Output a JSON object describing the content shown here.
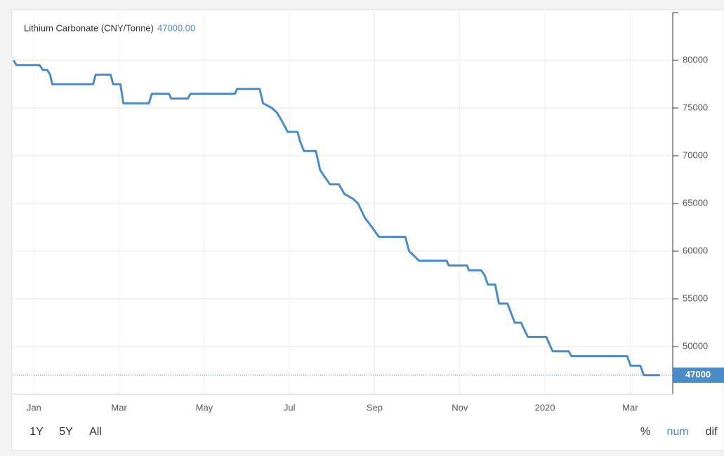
{
  "chart_data": {
    "type": "line",
    "title": "Lithium Carbonate (CNY/Tonne)",
    "header_value": "47000.00",
    "x": [
      -0.48,
      -0.41,
      0.13,
      0.21,
      0.31,
      0.38,
      0.43,
      1.39,
      1.45,
      1.8,
      1.86,
      2.03,
      2.1,
      2.7,
      2.77,
      3.17,
      3.22,
      3.61,
      3.68,
      4.72,
      4.77,
      5.3,
      5.38,
      5.59,
      5.71,
      5.84,
      5.96,
      6.19,
      6.25,
      6.34,
      6.62,
      6.72,
      6.95,
      7.16,
      7.29,
      7.49,
      7.61,
      7.77,
      7.94,
      8.1,
      8.72,
      8.81,
      8.93,
      9.04,
      9.69,
      9.74,
      10.17,
      10.21,
      10.5,
      10.58,
      10.66,
      10.83,
      10.92,
      11.12,
      11.29,
      11.44,
      11.49,
      11.6,
      12.03,
      12.18,
      12.56,
      12.62,
      13.93,
      14.01,
      14.24,
      14.32,
      14.7
    ],
    "series": [
      {
        "name": "Lithium Carbonate",
        "color": "#4b8bc8",
        "values": [
          80000,
          79500,
          79500,
          79000,
          79000,
          78500,
          77500,
          77500,
          78500,
          78500,
          77500,
          77500,
          75500,
          75500,
          76500,
          76500,
          76000,
          76000,
          76500,
          76500,
          77000,
          77000,
          75500,
          75000,
          74500,
          73500,
          72500,
          72500,
          71500,
          70500,
          70500,
          68500,
          67000,
          67000,
          66000,
          65500,
          65000,
          63500,
          62500,
          61500,
          61500,
          60000,
          59500,
          59000,
          59000,
          58500,
          58500,
          58000,
          58000,
          57500,
          56500,
          56500,
          54500,
          54500,
          52500,
          52500,
          52000,
          51000,
          51000,
          49500,
          49500,
          49000,
          49000,
          48000,
          48000,
          47000,
          47000
        ]
      }
    ],
    "xlim": [
      -0.5,
      15
    ],
    "xticks": [
      {
        "value": 0,
        "label": "Jan"
      },
      {
        "value": 2,
        "label": "Mar"
      },
      {
        "value": 4,
        "label": "May"
      },
      {
        "value": 6,
        "label": "Jul"
      },
      {
        "value": 8,
        "label": "Sep"
      },
      {
        "value": 10,
        "label": "Nov"
      },
      {
        "value": 12,
        "label": "2020"
      },
      {
        "value": 14,
        "label": "Mar"
      }
    ],
    "ylim": [
      45000,
      85000
    ],
    "yticks": [
      50000,
      55000,
      60000,
      65000,
      70000,
      75000,
      80000
    ],
    "grid": true,
    "last_value": 47000,
    "range_buttons": [
      "1Y",
      "5Y",
      "All"
    ],
    "mode_buttons": [
      "%",
      "num",
      "dif"
    ]
  }
}
